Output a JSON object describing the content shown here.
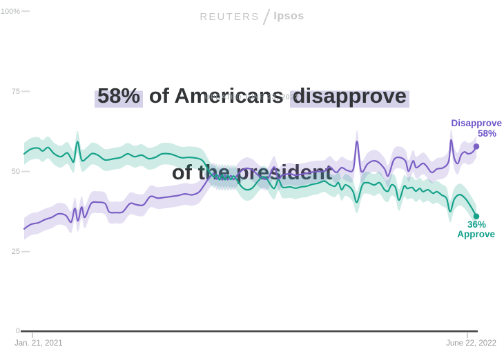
{
  "brand": {
    "reuters": "REUTERS",
    "ipsos": "Ipsos"
  },
  "title": {
    "highlight1": "58%",
    "join1": " of Americans ",
    "highlight2": "disapprove",
    "line2": "of the president",
    "highlight_color": "#d4d1e9"
  },
  "subtitle": "UPDATED JUNE 23, 2022",
  "axis": {
    "x_left_label": "Jan. 21, 2021",
    "x_right_label": "June 22, 2022",
    "axis_color": "#454545",
    "tick_color": "#c0c0c0",
    "grid_dash_color": "#dadada"
  },
  "chart_data": {
    "type": "line",
    "title": "58% of Americans disapprove of the president",
    "subtitle": "UPDATED JUNE 23, 2022",
    "x_range": [
      "Jan. 21, 2021",
      "June 22, 2022"
    ],
    "x_unit": "fraction of time span (0 = Jan. 21, 2021, 1 = June 22, 2022)",
    "ylim": [
      0,
      100
    ],
    "y_ticks": [
      "100%",
      "75",
      "50",
      "25",
      "0"
    ],
    "y_tick_values": [
      100,
      75,
      50,
      25,
      0
    ],
    "grid": false,
    "legend_position": "end-of-line labels, right side",
    "band_halfwidth_pct": 3.4,
    "series": [
      {
        "name": "Disapprove",
        "end_label": "58%",
        "end_value": 58,
        "color": "#7a5fc5",
        "band_color": "rgba(122,95,197,0.20)",
        "points": [
          [
            0.0,
            32.1
          ],
          [
            0.015,
            33.5
          ],
          [
            0.031,
            34.0
          ],
          [
            0.046,
            35.0
          ],
          [
            0.061,
            35.7
          ],
          [
            0.076,
            36.8
          ],
          [
            0.092,
            36.3
          ],
          [
            0.104,
            34.2
          ],
          [
            0.112,
            38.5
          ],
          [
            0.119,
            34.6
          ],
          [
            0.127,
            38.9
          ],
          [
            0.134,
            35.7
          ],
          [
            0.148,
            40.0
          ],
          [
            0.163,
            40.4
          ],
          [
            0.179,
            40.0
          ],
          [
            0.188,
            37.4
          ],
          [
            0.203,
            37.2
          ],
          [
            0.218,
            37.4
          ],
          [
            0.234,
            40.0
          ],
          [
            0.249,
            39.6
          ],
          [
            0.264,
            39.6
          ],
          [
            0.279,
            42.2
          ],
          [
            0.295,
            41.7
          ],
          [
            0.31,
            41.9
          ],
          [
            0.325,
            42.2
          ],
          [
            0.34,
            42.5
          ],
          [
            0.356,
            43.0
          ],
          [
            0.371,
            42.7
          ],
          [
            0.386,
            43.5
          ],
          [
            0.397,
            45.5
          ],
          [
            0.409,
            48.0
          ],
          [
            0.42,
            49.3
          ],
          [
            0.426,
            47.6
          ],
          [
            0.432,
            48.9
          ],
          [
            0.438,
            47.4
          ],
          [
            0.444,
            48.8
          ],
          [
            0.45,
            47.4
          ],
          [
            0.457,
            48.7
          ],
          [
            0.463,
            47.5
          ],
          [
            0.472,
            49.0
          ],
          [
            0.481,
            50.3
          ],
          [
            0.492,
            51.0
          ],
          [
            0.504,
            50.5
          ],
          [
            0.516,
            49.0
          ],
          [
            0.527,
            47.9
          ],
          [
            0.536,
            47.6
          ],
          [
            0.542,
            48.5
          ],
          [
            0.553,
            51.4
          ],
          [
            0.562,
            47.8
          ],
          [
            0.57,
            48.8
          ],
          [
            0.576,
            49.0
          ],
          [
            0.588,
            49.3
          ],
          [
            0.6,
            48.8
          ],
          [
            0.612,
            49.1
          ],
          [
            0.624,
            49.4
          ],
          [
            0.637,
            49.8
          ],
          [
            0.649,
            50.0
          ],
          [
            0.664,
            50.1
          ],
          [
            0.676,
            51.4
          ],
          [
            0.69,
            49.7
          ],
          [
            0.702,
            51.2
          ],
          [
            0.715,
            50.3
          ],
          [
            0.728,
            50.8
          ],
          [
            0.736,
            59.4
          ],
          [
            0.745,
            50.1
          ],
          [
            0.759,
            52.3
          ],
          [
            0.771,
            53.3
          ],
          [
            0.783,
            52.9
          ],
          [
            0.797,
            50.8
          ],
          [
            0.805,
            48.6
          ],
          [
            0.817,
            53.5
          ],
          [
            0.829,
            54.4
          ],
          [
            0.843,
            53.3
          ],
          [
            0.85,
            50.1
          ],
          [
            0.86,
            53.3
          ],
          [
            0.867,
            51.2
          ],
          [
            0.881,
            52.5
          ],
          [
            0.889,
            51.8
          ],
          [
            0.901,
            49.7
          ],
          [
            0.913,
            50.8
          ],
          [
            0.927,
            51.2
          ],
          [
            0.939,
            53.3
          ],
          [
            0.944,
            59.8
          ],
          [
            0.951,
            54.2
          ],
          [
            0.959,
            52.5
          ],
          [
            0.966,
            55.1
          ],
          [
            0.974,
            56.1
          ],
          [
            0.982,
            55.5
          ],
          [
            0.992,
            56.1
          ],
          [
            1.0,
            57.8
          ]
        ]
      },
      {
        "name": "Approve",
        "end_label": "36%",
        "end_value": 36,
        "color": "#16a28a",
        "band_color": "rgba(22,162,138,0.21)",
        "points": [
          [
            0.0,
            55.5
          ],
          [
            0.015,
            57.0
          ],
          [
            0.031,
            57.3
          ],
          [
            0.041,
            56.4
          ],
          [
            0.053,
            57.5
          ],
          [
            0.066,
            55.6
          ],
          [
            0.081,
            54.6
          ],
          [
            0.095,
            55.8
          ],
          [
            0.104,
            54.0
          ],
          [
            0.11,
            53.2
          ],
          [
            0.118,
            59.3
          ],
          [
            0.127,
            53.6
          ],
          [
            0.139,
            54.3
          ],
          [
            0.15,
            55.6
          ],
          [
            0.163,
            55.1
          ],
          [
            0.179,
            53.6
          ],
          [
            0.199,
            54.0
          ],
          [
            0.214,
            54.4
          ],
          [
            0.229,
            55.5
          ],
          [
            0.244,
            54.6
          ],
          [
            0.26,
            55.1
          ],
          [
            0.275,
            54.0
          ],
          [
            0.29,
            54.4
          ],
          [
            0.305,
            55.5
          ],
          [
            0.325,
            55.4
          ],
          [
            0.347,
            54.3
          ],
          [
            0.366,
            54.4
          ],
          [
            0.386,
            54.0
          ],
          [
            0.397,
            53.0
          ],
          [
            0.409,
            50.0
          ],
          [
            0.42,
            48.3
          ],
          [
            0.426,
            49.0
          ],
          [
            0.432,
            47.4
          ],
          [
            0.438,
            48.9
          ],
          [
            0.444,
            47.4
          ],
          [
            0.45,
            48.8
          ],
          [
            0.457,
            47.5
          ],
          [
            0.463,
            48.6
          ],
          [
            0.472,
            47.0
          ],
          [
            0.481,
            45.2
          ],
          [
            0.492,
            44.3
          ],
          [
            0.504,
            44.8
          ],
          [
            0.516,
            46.8
          ],
          [
            0.527,
            48.3
          ],
          [
            0.536,
            47.9
          ],
          [
            0.542,
            46.5
          ],
          [
            0.553,
            44.7
          ],
          [
            0.562,
            47.4
          ],
          [
            0.57,
            45.3
          ],
          [
            0.576,
            45.0
          ],
          [
            0.588,
            45.2
          ],
          [
            0.6,
            44.8
          ],
          [
            0.612,
            45.2
          ],
          [
            0.624,
            45.4
          ],
          [
            0.637,
            46.0
          ],
          [
            0.649,
            46.3
          ],
          [
            0.664,
            47.0
          ],
          [
            0.675,
            46.0
          ],
          [
            0.687,
            45.4
          ],
          [
            0.695,
            46.5
          ],
          [
            0.702,
            44.3
          ],
          [
            0.71,
            45.8
          ],
          [
            0.721,
            45.0
          ],
          [
            0.728,
            43.5
          ],
          [
            0.736,
            40.4
          ],
          [
            0.748,
            45.8
          ],
          [
            0.76,
            46.5
          ],
          [
            0.774,
            45.8
          ],
          [
            0.786,
            46.5
          ],
          [
            0.797,
            44.3
          ],
          [
            0.805,
            43.9
          ],
          [
            0.812,
            45.8
          ],
          [
            0.821,
            45.0
          ],
          [
            0.829,
            41.1
          ],
          [
            0.84,
            45.4
          ],
          [
            0.847,
            44.7
          ],
          [
            0.858,
            45.0
          ],
          [
            0.866,
            43.9
          ],
          [
            0.875,
            44.7
          ],
          [
            0.882,
            43.7
          ],
          [
            0.893,
            44.3
          ],
          [
            0.904,
            43.2
          ],
          [
            0.913,
            43.7
          ],
          [
            0.924,
            42.6
          ],
          [
            0.934,
            41.6
          ],
          [
            0.942,
            37.5
          ],
          [
            0.951,
            41.3
          ],
          [
            0.963,
            42.8
          ],
          [
            0.976,
            41.5
          ],
          [
            0.988,
            39.0
          ],
          [
            1.0,
            36.0
          ]
        ]
      }
    ]
  }
}
